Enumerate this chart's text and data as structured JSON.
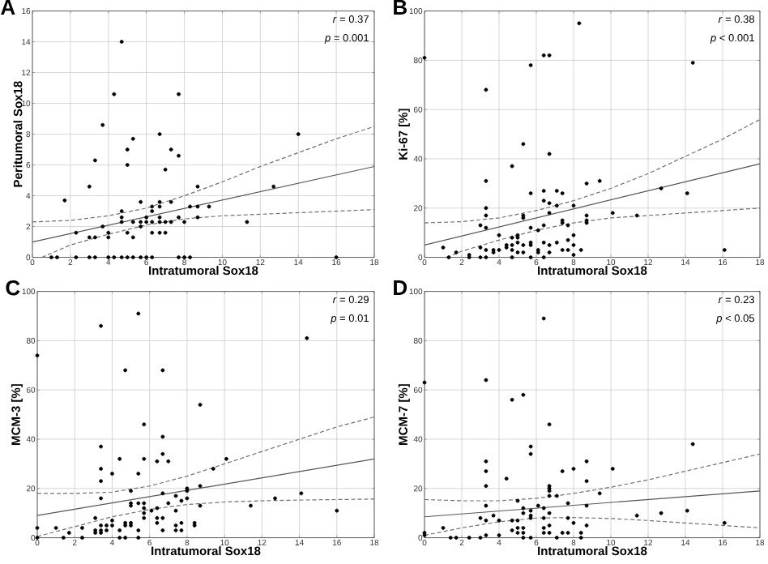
{
  "chart_data": [
    {
      "type": "scatter",
      "title": "A",
      "xlabel": "Intratumoral Sox18",
      "ylabel": "Peritumoral Sox18",
      "xlim": [
        0,
        18
      ],
      "xticks": [
        0,
        2,
        4,
        6,
        8,
        10,
        12,
        14,
        16,
        18
      ],
      "ylim": [
        0,
        16
      ],
      "yticks": [
        0,
        2,
        4,
        6,
        8,
        10,
        12,
        14,
        16
      ],
      "grid": true,
      "annotations": [
        "*r* = 0.37",
        "*p* = 0.001"
      ],
      "series": [
        {
          "marker": "circle",
          "color": "#000000",
          "x": [
            1.7,
            3.0,
            3.3,
            3.7,
            3.7,
            4.3,
            4.7,
            5.3,
            5.0,
            5.0,
            6.7,
            7.3,
            7.7,
            7.7,
            7.0,
            8.7,
            14.0,
            12.7,
            11.3,
            9.3,
            16.0,
            2.3,
            3.0,
            3.3,
            4.0,
            4.0,
            4.7,
            4.7,
            4.7,
            5.0,
            5.3,
            5.3,
            5.7,
            5.7,
            5.7,
            6.0,
            6.0,
            6.3,
            6.3,
            6.3,
            6.3,
            6.7,
            6.7,
            6.7,
            6.7,
            6.7,
            7.0,
            7.0,
            7.3,
            7.3,
            7.7,
            8.0,
            8.3,
            8.7,
            8.7,
            1.0,
            1.3,
            2.3,
            3.0,
            3.3,
            4.0,
            4.3,
            4.7,
            5.0,
            5.3,
            5.7,
            6.0,
            6.3,
            7.7,
            8.0,
            8.3
          ],
          "values": [
            3.7,
            4.6,
            6.3,
            8.6,
            2.0,
            10.6,
            14.0,
            7.7,
            7.0,
            6.0,
            8.0,
            7.0,
            6.6,
            10.6,
            5.7,
            4.6,
            8.0,
            4.6,
            2.3,
            3.3,
            0,
            1.6,
            1.3,
            1.3,
            1.3,
            1.6,
            3.0,
            2.6,
            2.3,
            1.6,
            1.3,
            2.3,
            3.6,
            2.0,
            2.3,
            2.3,
            2.6,
            3.3,
            3.0,
            2.3,
            1.6,
            3.6,
            3.3,
            2.6,
            2.3,
            1.6,
            2.3,
            1.6,
            3.6,
            2.3,
            2.6,
            2.3,
            3.3,
            3.3,
            2.6,
            0,
            0,
            0,
            0,
            0,
            0,
            0,
            0,
            0,
            0,
            0,
            0,
            0,
            0,
            0,
            0
          ]
        },
        {
          "type": "line",
          "line_style": "solid",
          "color": "#555555",
          "x": [
            0,
            18
          ],
          "values": [
            1.0,
            5.9
          ]
        },
        {
          "type": "line",
          "line_style": "dashed",
          "color": "#707070",
          "x": [
            0,
            2,
            4,
            6,
            8,
            10,
            12,
            14,
            16,
            18
          ],
          "values": [
            2.3,
            2.4,
            2.7,
            3.2,
            4.0,
            4.9,
            5.9,
            6.8,
            7.7,
            8.5
          ]
        },
        {
          "type": "line",
          "line_style": "dashed",
          "color": "#707070",
          "x": [
            0.5,
            2,
            4,
            6,
            8,
            10,
            12,
            14,
            16,
            18
          ],
          "values": [
            0,
            0.8,
            1.5,
            2.1,
            2.5,
            2.7,
            2.8,
            2.9,
            3.0,
            3.1
          ]
        }
      ]
    },
    {
      "type": "scatter",
      "title": "B",
      "xlabel": "Intratumoral Sox18",
      "ylabel": "Ki-67 [%]",
      "xlim": [
        0,
        18
      ],
      "xticks": [
        0,
        2,
        4,
        6,
        8,
        10,
        12,
        14,
        16,
        18
      ],
      "ylim": [
        0,
        100
      ],
      "yticks": [
        0,
        20,
        40,
        60,
        80,
        100
      ],
      "grid": true,
      "annotations": [
        "*r* = 0.38",
        "*p* < 0.001"
      ],
      "series": [
        {
          "marker": "circle",
          "color": "#000000",
          "x": [
            0,
            8.3,
            6.4,
            6.7,
            5.7,
            14.4,
            3.3,
            5.3,
            6.7,
            4.7,
            3.3,
            8.7,
            9.4,
            12.7,
            14.1,
            5.7,
            6.4,
            7.1,
            7.4,
            3.3,
            3.3,
            10.1,
            11.4,
            16.1,
            5.3,
            5.3,
            6.4,
            6.7,
            7.1,
            8.0,
            6.7,
            8.7,
            8.7,
            8.7,
            7.4,
            7.4,
            7.7,
            7.7,
            8.0,
            8.0,
            7.7,
            8.4,
            8.0,
            3.0,
            3.3,
            5.7,
            6.1,
            6.4,
            1.0,
            1.7,
            1.3,
            2.4,
            2.4,
            3.0,
            3.0,
            3.3,
            3.3,
            3.7,
            3.7,
            4.0,
            4.0,
            4.4,
            4.4,
            4.7,
            4.7,
            4.7,
            4.7,
            5.0,
            5.0,
            5.0,
            5.0,
            5.3,
            5.3,
            5.7,
            5.7,
            5.7,
            6.1,
            6.1,
            6.4,
            6.4,
            6.7,
            6.7,
            7.1,
            7.4
          ],
          "values": [
            81,
            95,
            82,
            82,
            78,
            79,
            68,
            46,
            42,
            37,
            31,
            30,
            31,
            28,
            26,
            26,
            27,
            27,
            26,
            20,
            17,
            18,
            17,
            3,
            16,
            17,
            23,
            22,
            21,
            21,
            18,
            17,
            15,
            14,
            15,
            14,
            13,
            7,
            9,
            5,
            3,
            3,
            1,
            13,
            12,
            12,
            11,
            13,
            4,
            2,
            0,
            1,
            0,
            4,
            0,
            3,
            0,
            2,
            3,
            9,
            3,
            5,
            4,
            3,
            5,
            8,
            0,
            9,
            8,
            6,
            2,
            5,
            2,
            6,
            5,
            0,
            3,
            2,
            6,
            0,
            2,
            5,
            6,
            3
          ]
        },
        {
          "type": "line",
          "line_style": "solid",
          "color": "#555555",
          "x": [
            0,
            18
          ],
          "values": [
            5,
            38
          ]
        },
        {
          "type": "line",
          "line_style": "dashed",
          "color": "#707070",
          "x": [
            0,
            2,
            4,
            6,
            8,
            10,
            12,
            14,
            16,
            18
          ],
          "values": [
            14,
            14.5,
            16,
            19,
            23,
            28,
            34,
            41,
            48,
            56
          ]
        },
        {
          "type": "line",
          "line_style": "dashed",
          "color": "#707070",
          "x": [
            1.2,
            2,
            4,
            6,
            8,
            10,
            12,
            14,
            16,
            18
          ],
          "values": [
            0,
            2.5,
            7,
            11,
            14,
            16,
            17,
            18,
            19,
            20
          ]
        }
      ]
    },
    {
      "type": "scatter",
      "title": "C",
      "xlabel": "Intratumoral Sox18",
      "ylabel": "MCM-3 [%]",
      "xlim": [
        0,
        18
      ],
      "xticks": [
        0,
        2,
        4,
        6,
        8,
        10,
        12,
        14,
        16,
        18
      ],
      "ylim": [
        0,
        100
      ],
      "yticks": [
        0,
        20,
        40,
        60,
        80,
        100
      ],
      "grid": true,
      "annotations": [
        "*r* = 0.29",
        "*p* = 0.01"
      ],
      "series": [
        {
          "marker": "circle",
          "color": "#000000",
          "x": [
            0,
            0,
            3.4,
            5.4,
            4.7,
            6.7,
            14.4,
            8.7,
            5.7,
            6.7,
            3.4,
            3.4,
            3.4,
            3.4,
            4.4,
            5.7,
            4.0,
            5.4,
            6.7,
            6.4,
            7.0,
            10.1,
            9.4,
            8.7,
            8.0,
            8.0,
            14.1,
            12.7,
            11.4,
            16.0,
            8.7,
            8.0,
            7.7,
            7.4,
            7.4,
            7.0,
            6.7,
            5.0,
            5.0,
            5.0,
            5.4,
            5.7,
            5.7,
            5.7,
            5.7,
            6.1,
            6.4,
            6.4,
            6.4,
            6.7,
            6.7,
            7.4,
            7.4,
            7.7,
            7.7,
            8.4,
            8.4,
            4.7,
            4.7,
            4.4,
            4.4,
            4.7,
            5.0,
            5.0,
            5.4,
            5.4,
            4.0,
            4.0,
            3.7,
            3.7,
            3.4,
            3.4,
            3.4,
            3.1,
            3.1,
            3.1,
            2.4,
            2.4,
            1.7,
            1.0,
            1.4,
            0
          ],
          "values": [
            74,
            4,
            86,
            91,
            68,
            68,
            81,
            54,
            46,
            41,
            37,
            28,
            23,
            16,
            32,
            32,
            26,
            26,
            34,
            31,
            31,
            32,
            28,
            21,
            20,
            19,
            18,
            16,
            13,
            11,
            13,
            16,
            15,
            17,
            11,
            14,
            18,
            19,
            14,
            13,
            14,
            14,
            12,
            10,
            8,
            11,
            12,
            8,
            6,
            8,
            3,
            3,
            5,
            6,
            3,
            6,
            5,
            6,
            5,
            3,
            0,
            0,
            6,
            5,
            3,
            0,
            7,
            5,
            5,
            3,
            5,
            3,
            2,
            8,
            3,
            2,
            4,
            0,
            2,
            4,
            0,
            0
          ]
        },
        {
          "type": "line",
          "line_style": "solid",
          "color": "#555555",
          "x": [
            0,
            18
          ],
          "values": [
            9,
            32
          ]
        },
        {
          "type": "line",
          "line_style": "dashed",
          "color": "#707070",
          "x": [
            0,
            2,
            4,
            6,
            8,
            10,
            12,
            14,
            16,
            18
          ],
          "values": [
            18,
            18,
            18.5,
            21,
            25,
            30,
            35,
            40,
            45,
            49
          ]
        },
        {
          "type": "line",
          "line_style": "dashed",
          "color": "#707070",
          "x": [
            0,
            2,
            4,
            6,
            8,
            10,
            12,
            14,
            16,
            18
          ],
          "values": [
            0.5,
            4.5,
            8.5,
            11.5,
            13.5,
            14.5,
            15,
            15.3,
            15.5,
            15.7
          ]
        }
      ]
    },
    {
      "type": "scatter",
      "title": "D",
      "xlabel": "Intratumoral Sox18",
      "ylabel": "MCM-7 [%]",
      "xlim": [
        0,
        18
      ],
      "xticks": [
        0,
        2,
        4,
        6,
        8,
        10,
        12,
        14,
        16,
        18
      ],
      "ylim": [
        0,
        100
      ],
      "yticks": [
        0,
        20,
        40,
        60,
        80,
        100
      ],
      "grid": true,
      "annotations": [
        "*r* = 0.23",
        "*p* < 0.05"
      ],
      "series": [
        {
          "marker": "circle",
          "color": "#000000",
          "x": [
            0,
            0,
            0,
            6.4,
            3.3,
            5.3,
            4.7,
            6.7,
            5.7,
            5.7,
            14.4,
            3.3,
            3.3,
            3.3,
            4.4,
            8.7,
            8.7,
            7.4,
            8.0,
            10.1,
            9.4,
            6.7,
            6.7,
            6.7,
            6.7,
            7.1,
            7.7,
            8.7,
            8.7,
            11.4,
            12.7,
            14.1,
            16.1,
            3.3,
            3.0,
            3.3,
            3.7,
            4.0,
            5.0,
            5.3,
            5.3,
            5.7,
            5.7,
            5.7,
            6.1,
            6.4,
            6.4,
            6.7,
            1.0,
            1.4,
            1.7,
            2.4,
            3.0,
            3.3,
            4.0,
            4.7,
            4.7,
            5.0,
            5.0,
            5.0,
            5.3,
            5.3,
            5.3,
            5.7,
            6.4,
            6.4,
            6.7,
            6.7,
            7.1,
            7.4,
            7.7,
            7.7,
            8.0,
            8.4,
            8.4
          ],
          "values": [
            63,
            2,
            1,
            89,
            64,
            58,
            56,
            46,
            37,
            34,
            38,
            31,
            27,
            21,
            24,
            31,
            23,
            27,
            28,
            28,
            18,
            21,
            20,
            19,
            17,
            17,
            14,
            13,
            5,
            9,
            10,
            11,
            6,
            13,
            8,
            7,
            9,
            7,
            15,
            12,
            10,
            11,
            9,
            8,
            13,
            12,
            8,
            10,
            4,
            0,
            0,
            0,
            0,
            1,
            1,
            3,
            7,
            7,
            4,
            2,
            4,
            2,
            0,
            0,
            4,
            2,
            2,
            5,
            0,
            2,
            2,
            8,
            6,
            2,
            0
          ]
        },
        {
          "type": "line",
          "line_style": "solid",
          "color": "#555555",
          "x": [
            0,
            18
          ],
          "values": [
            8.5,
            19
          ]
        },
        {
          "type": "line",
          "line_style": "dashed",
          "color": "#707070",
          "x": [
            0,
            2,
            4,
            6,
            8,
            10,
            12,
            14,
            16,
            18
          ],
          "values": [
            15.5,
            15,
            15,
            16,
            18,
            20.5,
            23.5,
            27,
            30.5,
            34
          ]
        },
        {
          "type": "line",
          "line_style": "dashed",
          "color": "#707070",
          "x": [
            0,
            2,
            4,
            6,
            8,
            10,
            12,
            14,
            16,
            18
          ],
          "values": [
            1,
            4,
            6.5,
            8,
            8.2,
            7.8,
            7,
            6,
            5,
            4
          ]
        }
      ]
    }
  ]
}
